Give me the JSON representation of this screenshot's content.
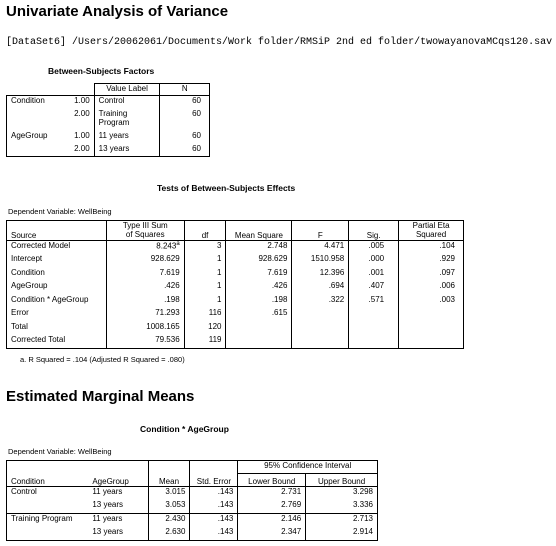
{
  "univariate": {
    "title": "Univariate Analysis of Variance",
    "dataset_path": "[DataSet6] /Users/20062061/Documents/Work folder/RMSiP 2nd ed folder/twowayanovaMCqs120.sav"
  },
  "bsf": {
    "title": "Between-Subjects Factors",
    "col_value_label": "Value Label",
    "col_n": "N",
    "rows": [
      {
        "factor": "Condition",
        "value": "1.00",
        "label": "Control",
        "label2": "",
        "n": "60"
      },
      {
        "factor": "",
        "value": "2.00",
        "label": "Training",
        "label2": "Program",
        "n": "60"
      },
      {
        "factor": "AgeGroup",
        "value": "1.00",
        "label": "11 years",
        "label2": "",
        "n": "60"
      },
      {
        "factor": "",
        "value": "2.00",
        "label": "13 years",
        "label2": "",
        "n": "60"
      }
    ]
  },
  "tbse": {
    "title": "Tests of Between-Subjects Effects",
    "dv": "Dependent Variable: WellBeing",
    "headers": {
      "source": "Source",
      "ss1": "Type III Sum",
      "ss2": "of Squares",
      "df": "df",
      "ms": "Mean Square",
      "f": "F",
      "sig": "Sig.",
      "pe1": "Partial Eta",
      "pe2": "Squared"
    },
    "rows": [
      {
        "source": "Corrected Model",
        "ss": "8.243",
        "sup": "a",
        "df": "3",
        "ms": "2.748",
        "f": "4.471",
        "sig": ".005",
        "pe": ".104"
      },
      {
        "source": "Intercept",
        "ss": "928.629",
        "sup": "",
        "df": "1",
        "ms": "928.629",
        "f": "1510.958",
        "sig": ".000",
        "pe": ".929"
      },
      {
        "source": "Condition",
        "ss": "7.619",
        "sup": "",
        "df": "1",
        "ms": "7.619",
        "f": "12.396",
        "sig": ".001",
        "pe": ".097"
      },
      {
        "source": "AgeGroup",
        "ss": ".426",
        "sup": "",
        "df": "1",
        "ms": ".426",
        "f": ".694",
        "sig": ".407",
        "pe": ".006"
      },
      {
        "source": "Condition * AgeGroup",
        "ss": ".198",
        "sup": "",
        "df": "1",
        "ms": ".198",
        "f": ".322",
        "sig": ".571",
        "pe": ".003"
      },
      {
        "source": "Error",
        "ss": "71.293",
        "sup": "",
        "df": "116",
        "ms": ".615",
        "f": "",
        "sig": "",
        "pe": ""
      },
      {
        "source": "Total",
        "ss": "1008.165",
        "sup": "",
        "df": "120",
        "ms": "",
        "f": "",
        "sig": "",
        "pe": ""
      },
      {
        "source": "Corrected Total",
        "ss": "79.536",
        "sup": "",
        "df": "119",
        "ms": "",
        "f": "",
        "sig": "",
        "pe": ""
      }
    ],
    "footnote": "a. R Squared = .104 (Adjusted R Squared = .080)"
  },
  "emm": {
    "title": "Estimated Marginal Means",
    "subtitle": "Condition * AgeGroup",
    "dv": "Dependent Variable: WellBeing",
    "headers": {
      "condition": "Condition",
      "agegroup": "AgeGroup",
      "mean": "Mean",
      "se": "Std. Error",
      "ci": "95% Confidence Interval",
      "lower": "Lower Bound",
      "upper": "Upper Bound"
    },
    "rows": [
      {
        "condition": "Control",
        "age": "11 years",
        "mean": "3.015",
        "se": ".143",
        "lower": "2.731",
        "upper": "3.298"
      },
      {
        "condition": "",
        "age": "13 years",
        "mean": "3.053",
        "se": ".143",
        "lower": "2.769",
        "upper": "3.336"
      },
      {
        "condition": "Training Program",
        "age": "11 years",
        "mean": "2.430",
        "se": ".143",
        "lower": "2.146",
        "upper": "2.713"
      },
      {
        "condition": "",
        "age": "13 years",
        "mean": "2.630",
        "se": ".143",
        "lower": "2.347",
        "upper": "2.914"
      }
    ]
  }
}
